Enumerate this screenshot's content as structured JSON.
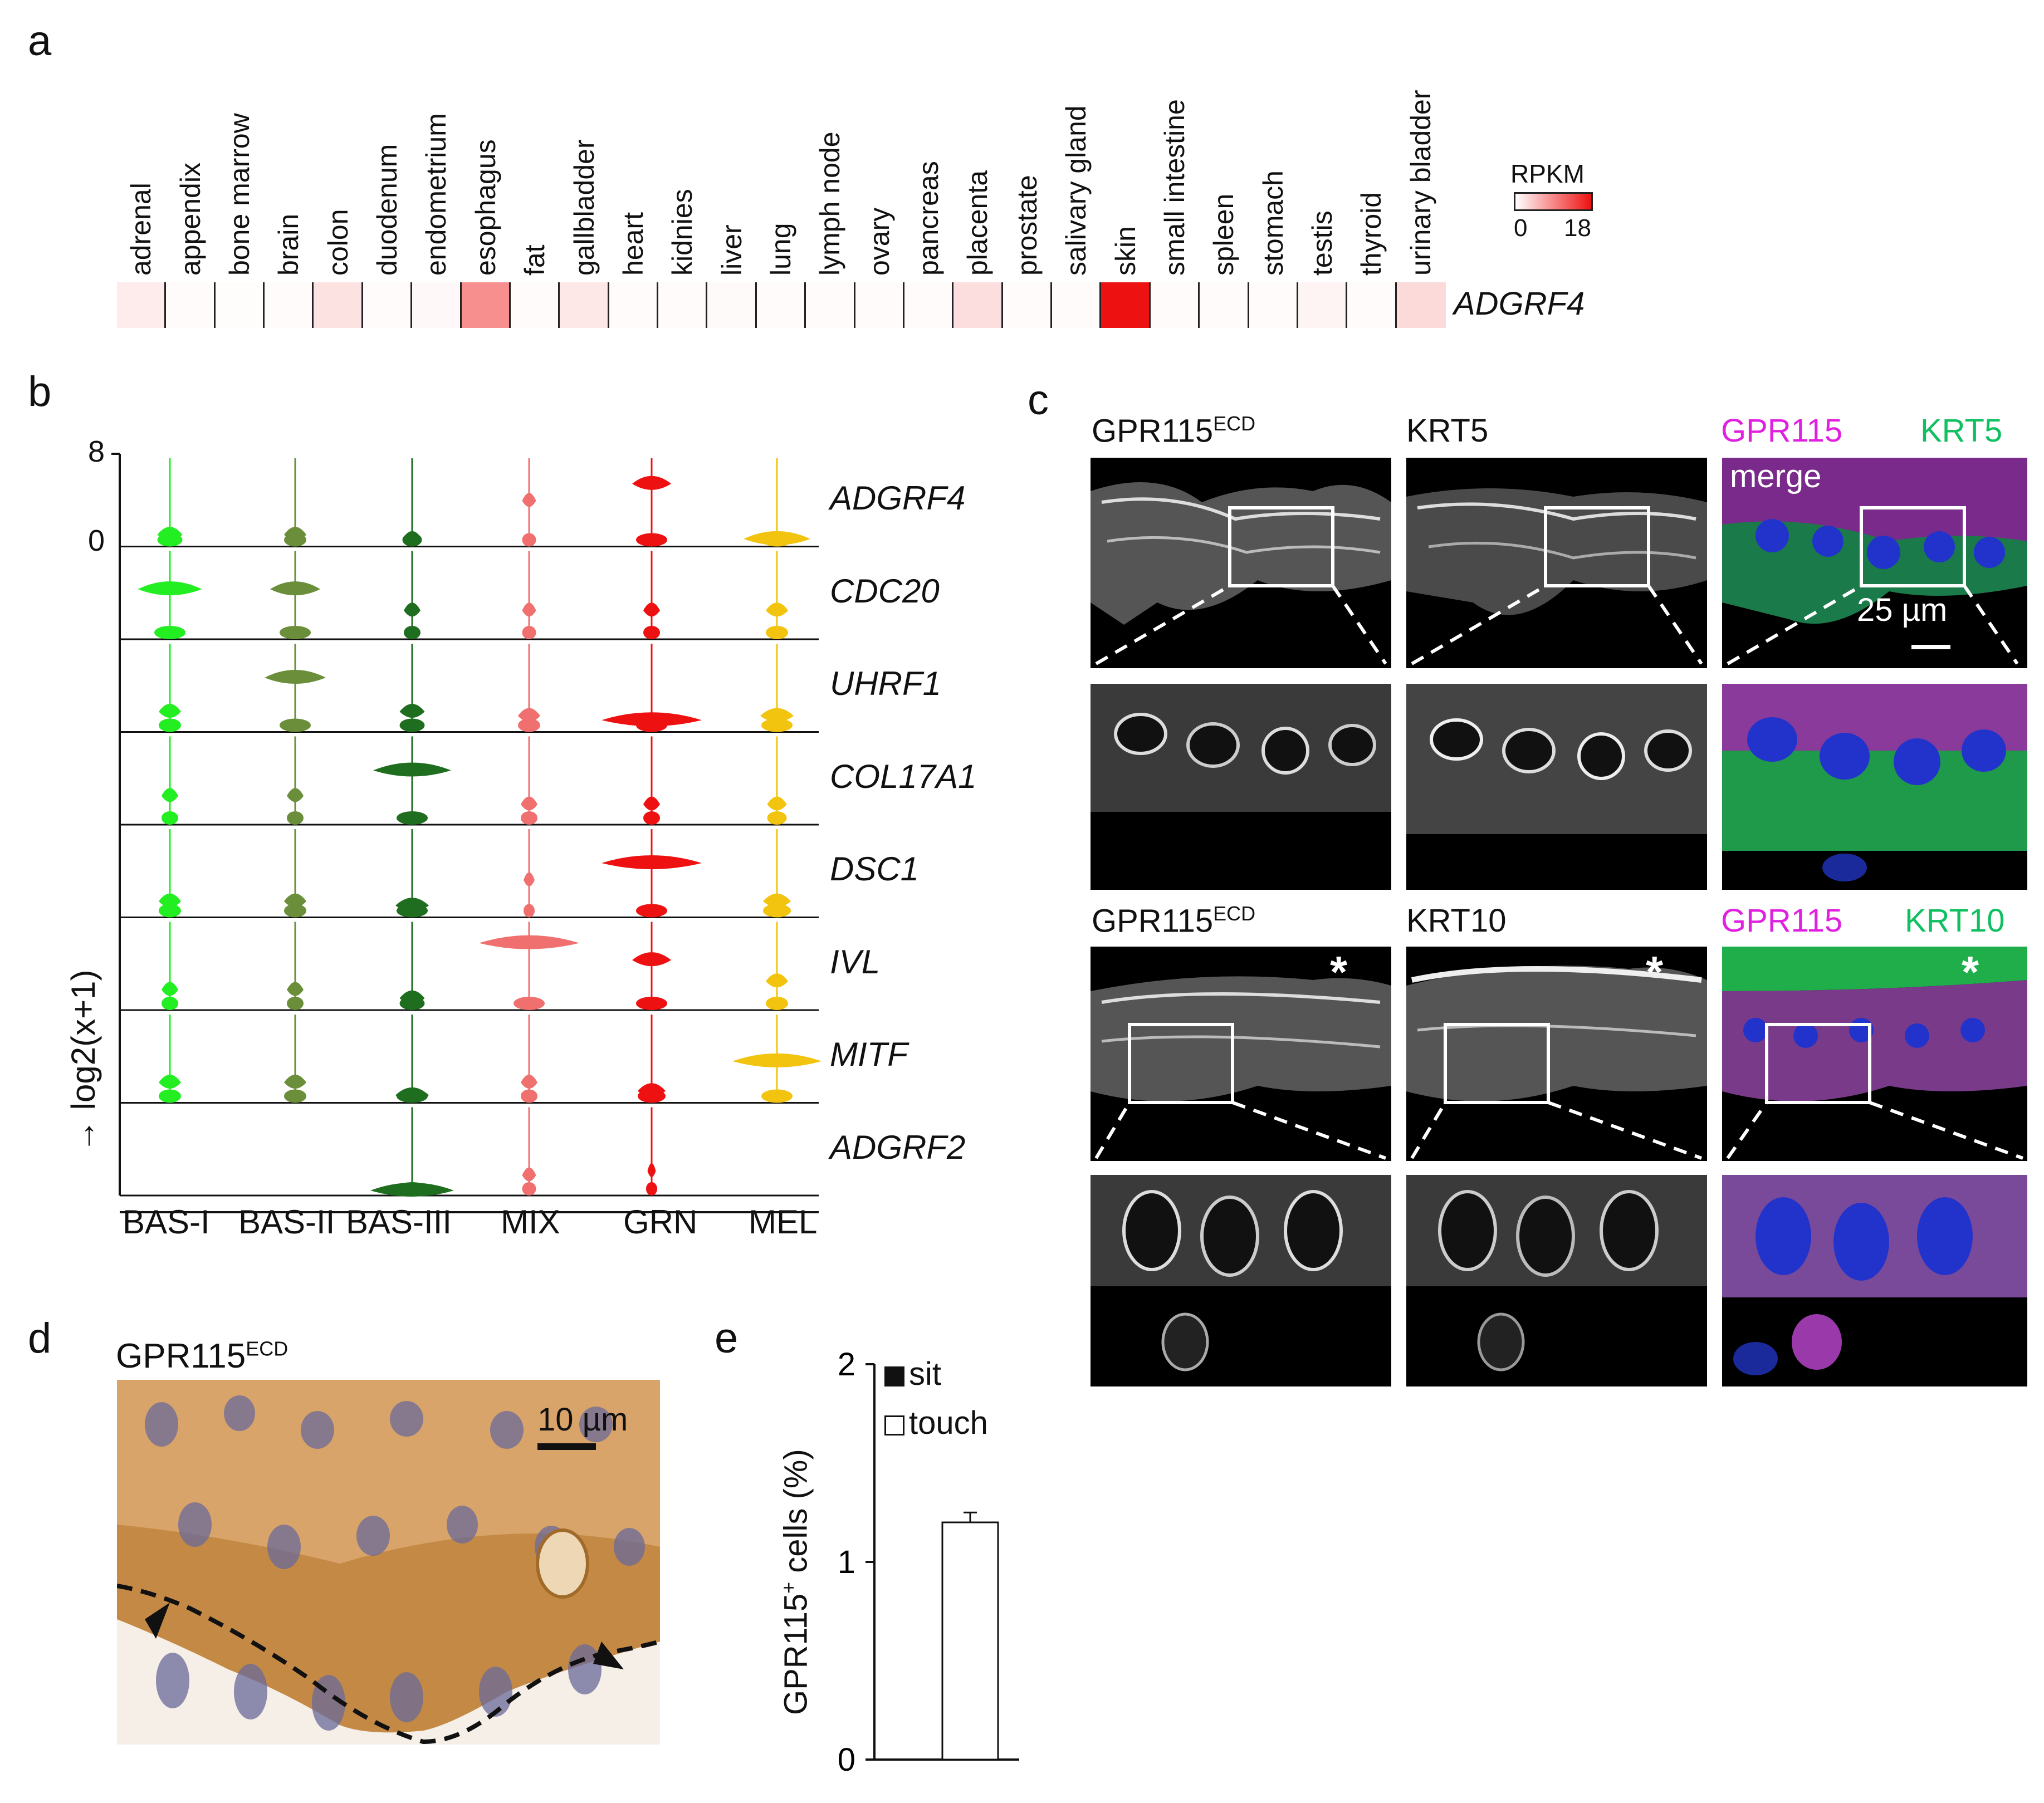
{
  "panels": {
    "a": "a",
    "b": "b",
    "c": "c",
    "d": "d",
    "e": "e"
  },
  "panel_a": {
    "gene": "ADGRF4",
    "tissues": [
      "adrenal",
      "appendix",
      "bone marrow",
      "brain",
      "colon",
      "duodenum",
      "endometrium",
      "esophagus",
      "fat",
      "gallbladder",
      "heart",
      "kidnies",
      "liver",
      "lung",
      "lymph node",
      "ovary",
      "pancreas",
      "placenta",
      "prostate",
      "salivary gland",
      "skin",
      "small intestine",
      "spleen",
      "stomach",
      "testis",
      "thyroid",
      "urinary bladder"
    ],
    "rpkm_values": [
      1.5,
      0.3,
      0.2,
      0.3,
      2.2,
      0.3,
      0.5,
      8.5,
      0.3,
      1.8,
      0.3,
      0.3,
      0.4,
      0.3,
      0.3,
      0.3,
      0.3,
      2.5,
      0.3,
      0.3,
      18,
      0.3,
      0.3,
      0.3,
      0.8,
      0.3,
      2.8
    ],
    "legend_title": "RPKM",
    "legend_min": "0",
    "legend_max": "18",
    "colors": {
      "low": "#ffffff",
      "high": "#ee1111"
    }
  },
  "panel_b": {
    "y_top_label": "8",
    "y_zero_label": "0",
    "y_axis_label": "log2(x+1)",
    "genes": [
      "ADGRF4",
      "CDC20",
      "UHRF1",
      "COL17A1",
      "DSC1",
      "IVL",
      "MITF",
      "ADGRF2"
    ],
    "clusters": [
      "BAS-I",
      "BAS-II",
      "BAS-III",
      "MIX",
      "GRN",
      "MEL"
    ],
    "colors": [
      "#22ee22",
      "#6b8e3a",
      "#1f6e1f",
      "#f07070",
      "#ee1111",
      "#f2c40f"
    ]
  },
  "panel_c": {
    "top_titles": {
      "left_main": "GPR115",
      "left_sup": "ECD",
      "middle": "KRT5",
      "right_a": "GPR115",
      "right_b": "KRT5"
    },
    "merge_label": "merge",
    "scale_bar": "25 µm",
    "bottom_titles": {
      "left_main": "GPR115",
      "left_sup": "ECD",
      "middle": "KRT10",
      "right_a": "GPR115",
      "right_b": "KRT10"
    },
    "star": "*",
    "colors": {
      "magenta": "#e020e0",
      "green": "#10c060"
    }
  },
  "panel_d": {
    "title_main": "GPR115",
    "title_sup": "ECD",
    "scale_bar": "10 µm"
  },
  "panel_e": {
    "legend": [
      "sit",
      "touch"
    ],
    "y_label_pre": "GPR115",
    "y_label_sup": "+",
    "y_label_post": " cells (%)"
  },
  "chart_data": {
    "type": "bar",
    "categories": [
      "touch"
    ],
    "values": [
      1.2
    ],
    "error": [
      0.05
    ],
    "title": "",
    "xlabel": "",
    "ylabel": "GPR115+ cells (%)",
    "ylim": [
      0,
      2
    ],
    "yticks": [
      "0",
      "1",
      "2"
    ],
    "legend": [
      "sit",
      "touch"
    ]
  }
}
